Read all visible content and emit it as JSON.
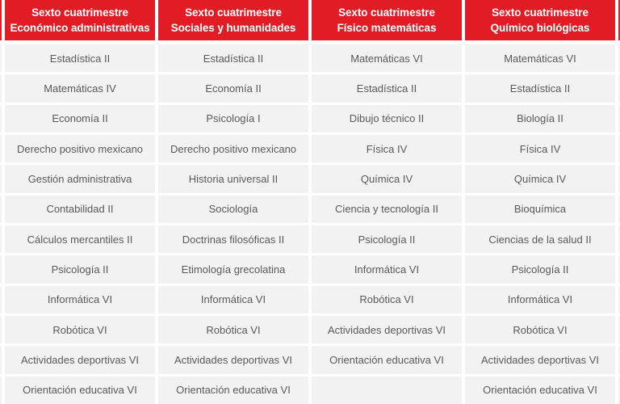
{
  "colors": {
    "header_bg": "#e11c24",
    "header_text": "#ffffff",
    "row_bg": "#f2f2f2",
    "row_text": "#595959",
    "gap_bg": "#ffffff"
  },
  "table": {
    "columns": [
      {
        "header": {
          "line1": "Sexto cuatrimestre",
          "line2": "Económico administrativas"
        },
        "subjects": [
          "Estadística II",
          "Matemáticas IV",
          "Economía II",
          "Derecho positivo mexicano",
          "Gestión administrativa",
          "Contabilidad II",
          "Cálculos mercantiles II",
          "Psicología II",
          "Informática VI",
          "Robótica VI",
          "Actividades deportivas VI",
          "Orientación educativa VI"
        ]
      },
      {
        "header": {
          "line1": "Sexto cuatrimestre",
          "line2": "Sociales y humanidades"
        },
        "subjects": [
          "Estadística II",
          "Economía II",
          "Psicología I",
          "Derecho positivo mexicano",
          "Historia universal II",
          "Sociología",
          "Doctrinas filosóficas II",
          "Etimología grecolatina",
          "Informática VI",
          "Robótica VI",
          "Actividades deportivas VI",
          "Orientación educativa VI"
        ]
      },
      {
        "header": {
          "line1": "Sexto cuatrimestre",
          "line2": "Físico matemáticas"
        },
        "subjects": [
          "Matemáticas VI",
          "Estadística II",
          "Dibujo técnico II",
          "Física IV",
          "Química IV",
          "Ciencia y tecnología II",
          "Psicología II",
          "Informática VI",
          "Robótica VI",
          "Actividades deportivas VI",
          "Orientación educativa VI",
          ""
        ]
      },
      {
        "header": {
          "line1": "Sexto cuatrimestre",
          "line2": "Químico biológicas"
        },
        "subjects": [
          "Matemáticas VI",
          "Estadística II",
          "Biología II",
          "Física IV",
          "Química IV",
          "Bioquímica",
          "Ciencias de la salud II",
          "Psicología II",
          "Informática VI",
          "Robótica VI",
          "Actividades deportivas VI",
          "Orientación educativa VI"
        ]
      }
    ]
  }
}
